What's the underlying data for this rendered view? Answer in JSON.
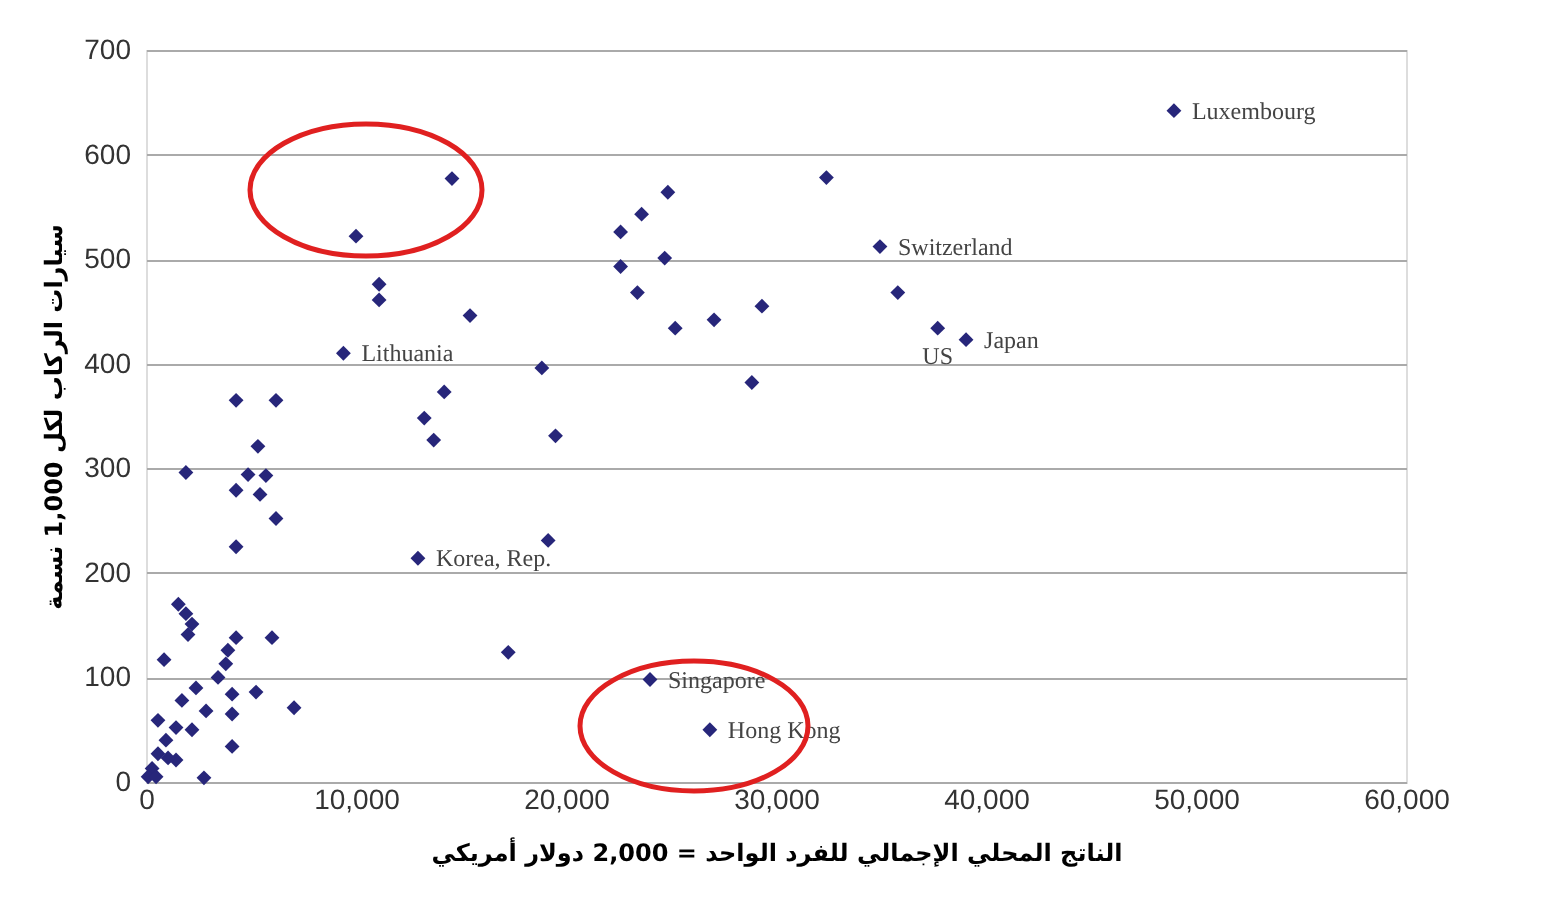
{
  "chart_data": {
    "type": "scatter",
    "xlabel": "الناتج المحلي الإجمالي للفرد الواحد = 2,000 دولار أمريكي",
    "ylabel": "سيارات الركاب لكل 1,000 نسمة",
    "x": [
      48950,
      32400,
      34950,
      35800,
      37700,
      39050,
      28850,
      29330,
      27050,
      25200,
      24700,
      23400,
      22600,
      22600,
      23600,
      24850,
      19500,
      18850,
      14200,
      13250,
      13700,
      12950,
      19150,
      17250,
      24000,
      26850,
      14570,
      10000,
      11100,
      11100,
      15430,
      9400,
      4290,
      6190,
      5330,
      1900,
      4860,
      5710,
      4290,
      5430,
      6190,
      4290,
      1540,
      1900,
      2190,
      2000,
      6000,
      4290,
      3900,
      3800,
      860,
      3430,
      2380,
      4100,
      5240,
      7050,
      1710,
      2860,
      4100,
      570,
      1430,
      2190,
      4100,
      950,
      570,
      1430,
      290,
      100,
      2760,
      480,
      1050
    ],
    "series": [
      {
        "color": "#27267a",
        "values": [
          642,
          578,
          512,
          468,
          434,
          423,
          382,
          455,
          442,
          434,
          501,
          468,
          493,
          526,
          543,
          564,
          331,
          396,
          373,
          348,
          327,
          214,
          231,
          124,
          98,
          50,
          577,
          522,
          476,
          461,
          446,
          410,
          365,
          365,
          321,
          296,
          294,
          293,
          279,
          275,
          252,
          225,
          170,
          161,
          151,
          141,
          138,
          138,
          126,
          113,
          117,
          100,
          90,
          84,
          86,
          71,
          78,
          68,
          65,
          59,
          52,
          50,
          34,
          40,
          27,
          21,
          13,
          5,
          4,
          5,
          23
        ]
      }
    ],
    "xlim": [
      0,
      60000
    ],
    "ylim": [
      0,
      700
    ],
    "xticks": [
      {
        "value": 0,
        "label": "0"
      },
      {
        "value": 10000,
        "label": "10,000"
      },
      {
        "value": 20000,
        "label": "20,000"
      },
      {
        "value": 30000,
        "label": "30,000"
      },
      {
        "value": 40000,
        "label": "40,000"
      },
      {
        "value": 50000,
        "label": "50,000"
      },
      {
        "value": 60000,
        "label": "60,000"
      }
    ],
    "yticks": [
      0,
      100,
      200,
      300,
      400,
      500,
      600,
      700
    ],
    "grid": "y",
    "marker": "diamond",
    "annotations": [
      {
        "text": "Luxembourg",
        "x": 48950,
        "y": 642
      },
      {
        "text": "Switzerland",
        "x": 34950,
        "y": 512
      },
      {
        "text": "US",
        "x": 37700,
        "y": 434
      },
      {
        "text": "Japan",
        "x": 39050,
        "y": 423
      },
      {
        "text": "Lithuania",
        "x": 9400,
        "y": 410
      },
      {
        "text": "Korea, Rep.",
        "x": 12950,
        "y": 214
      },
      {
        "text": "Singapore",
        "x": 24000,
        "y": 98
      },
      {
        "text": "Hong Kong",
        "x": 26850,
        "y": 50
      }
    ]
  }
}
